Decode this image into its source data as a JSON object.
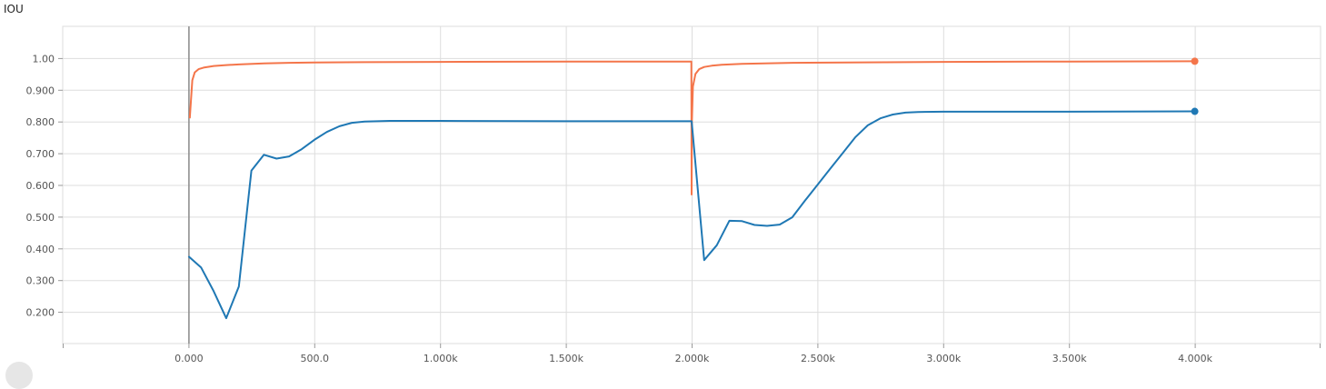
{
  "chart_data": {
    "type": "line",
    "title": "IOU",
    "xlabel": "",
    "ylabel": "",
    "xlim": [
      -500,
      4500
    ],
    "ylim": [
      0.1,
      1.1
    ],
    "grid": true,
    "x_ticks": [
      {
        "value": 0,
        "label": "0.000"
      },
      {
        "value": 500,
        "label": "500.0"
      },
      {
        "value": 1000,
        "label": "1.000k"
      },
      {
        "value": 1500,
        "label": "1.500k"
      },
      {
        "value": 2000,
        "label": "2.000k"
      },
      {
        "value": 2500,
        "label": "2.500k"
      },
      {
        "value": 3000,
        "label": "3.000k"
      },
      {
        "value": 3500,
        "label": "3.500k"
      },
      {
        "value": 4000,
        "label": "4.000k"
      }
    ],
    "y_ticks": [
      {
        "value": 0.2,
        "label": "0.200"
      },
      {
        "value": 0.3,
        "label": "0.300"
      },
      {
        "value": 0.4,
        "label": "0.400"
      },
      {
        "value": 0.5,
        "label": "0.500"
      },
      {
        "value": 0.6,
        "label": "0.600"
      },
      {
        "value": 0.7,
        "label": "0.700"
      },
      {
        "value": 0.8,
        "label": "0.800"
      },
      {
        "value": 0.9,
        "label": "0.900"
      },
      {
        "value": 1.0,
        "label": "1.00"
      }
    ],
    "series": [
      {
        "color": "#f4754a",
        "x": [
          5,
          15,
          25,
          40,
          60,
          100,
          150,
          200,
          300,
          400,
          500,
          700,
          1000,
          1500,
          1999,
          2000,
          2001,
          2005,
          2015,
          2030,
          2050,
          2080,
          2120,
          2200,
          2400,
          3000,
          3500,
          4000
        ],
        "y": [
          0.81,
          0.93,
          0.955,
          0.965,
          0.97,
          0.975,
          0.978,
          0.98,
          0.983,
          0.985,
          0.986,
          0.987,
          0.988,
          0.989,
          0.989,
          0.57,
          0.8,
          0.91,
          0.95,
          0.965,
          0.972,
          0.976,
          0.979,
          0.982,
          0.985,
          0.988,
          0.989,
          0.99
        ]
      },
      {
        "color": "#1f78b4",
        "x": [
          0,
          50,
          100,
          150,
          200,
          250,
          300,
          350,
          400,
          450,
          500,
          550,
          600,
          650,
          700,
          800,
          1000,
          1500,
          2000,
          2050,
          2100,
          2150,
          2200,
          2250,
          2300,
          2350,
          2400,
          2450,
          2500,
          2550,
          2600,
          2650,
          2700,
          2750,
          2800,
          2850,
          2900,
          3000,
          3500,
          4000
        ],
        "y": [
          0.375,
          0.34,
          0.265,
          0.18,
          0.28,
          0.645,
          0.695,
          0.683,
          0.69,
          0.713,
          0.742,
          0.767,
          0.785,
          0.796,
          0.8,
          0.802,
          0.802,
          0.801,
          0.801,
          0.363,
          0.41,
          0.487,
          0.486,
          0.474,
          0.471,
          0.475,
          0.498,
          0.55,
          0.6,
          0.65,
          0.7,
          0.75,
          0.788,
          0.81,
          0.822,
          0.828,
          0.83,
          0.831,
          0.831,
          0.832
        ]
      }
    ]
  }
}
